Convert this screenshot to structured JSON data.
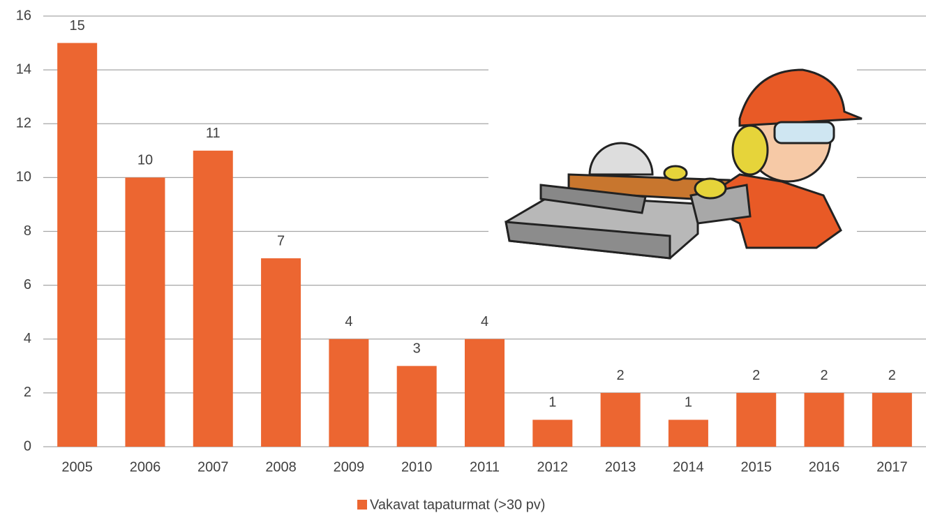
{
  "chart_data": {
    "type": "bar",
    "categories": [
      "2005",
      "2006",
      "2007",
      "2008",
      "2009",
      "2010",
      "2011",
      "2012",
      "2013",
      "2014",
      "2015",
      "2016",
      "2017"
    ],
    "series": [
      {
        "name": "Vakavat tapaturmat (>30 pv)",
        "color": "#ec6631",
        "values": [
          15,
          10,
          11,
          7,
          4,
          3,
          4,
          1,
          2,
          1,
          2,
          2,
          2
        ]
      }
    ],
    "ylim": [
      0,
      16
    ],
    "yticks": [
      0,
      2,
      4,
      6,
      8,
      10,
      12,
      14,
      16
    ],
    "grid": true,
    "legend": "bottom"
  }
}
